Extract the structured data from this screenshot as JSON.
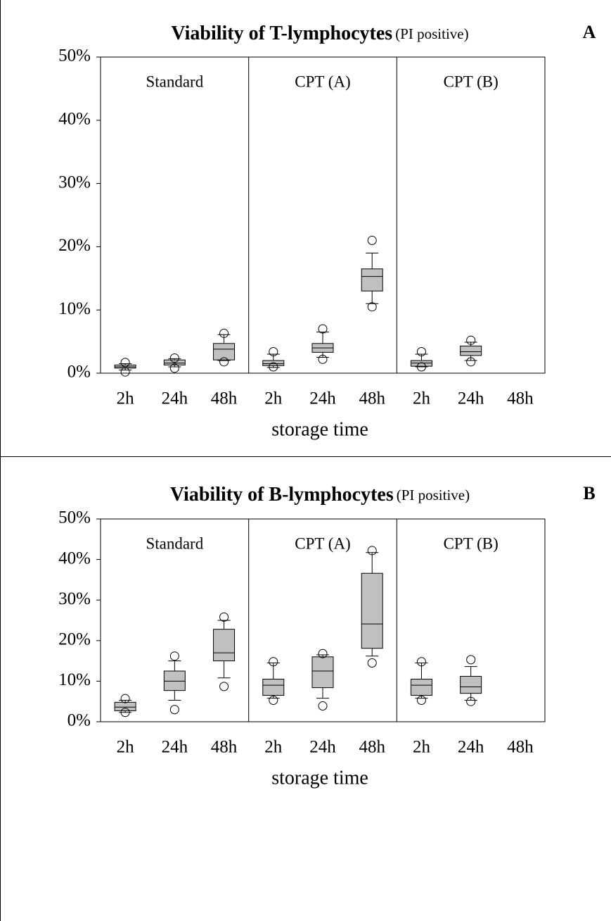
{
  "chart_data": [
    {
      "type": "box",
      "title": "Viability of T-lymphocytes",
      "subtitle": "(PI positive)",
      "panel_label": "A",
      "xlabel": "storage time",
      "groups": [
        "Standard",
        "CPT (A)",
        "CPT (B)"
      ],
      "categories": [
        "2h",
        "24h",
        "48h",
        "2h",
        "24h",
        "48h",
        "2h",
        "24h",
        "48h"
      ],
      "color": "#c0c0c0",
      "ylim": [
        0,
        50
      ],
      "yticks": [
        {
          "value": 0,
          "label": "0%"
        },
        {
          "value": 10,
          "label": "10%"
        },
        {
          "value": 20,
          "label": "20%"
        },
        {
          "value": 30,
          "label": "30%"
        },
        {
          "value": 40,
          "label": "40%"
        },
        {
          "value": 50,
          "label": "50%"
        }
      ],
      "boxes": [
        {
          "min": 0.5,
          "q1": 0.8,
          "median": 1.0,
          "q3": 1.3,
          "max": 1.5,
          "outliers": [
            1.7,
            0.2
          ]
        },
        {
          "min": 1.0,
          "q1": 1.3,
          "median": 1.6,
          "q3": 2.1,
          "max": 2.3,
          "outliers": [
            2.4,
            0.8
          ]
        },
        {
          "min": 2.0,
          "q1": 2.1,
          "median": 3.8,
          "q3": 4.7,
          "max": 6.1,
          "outliers": [
            6.3,
            1.8
          ]
        },
        {
          "min": 0.9,
          "q1": 1.2,
          "median": 1.5,
          "q3": 2.0,
          "max": 3.0,
          "outliers": [
            3.4,
            1.0
          ]
        },
        {
          "min": 2.5,
          "q1": 3.3,
          "median": 4.0,
          "q3": 4.7,
          "max": 6.5,
          "outliers": [
            7.0,
            2.2
          ]
        },
        {
          "min": 11,
          "q1": 13,
          "median": 15.3,
          "q3": 16.5,
          "max": 19,
          "outliers": [
            21,
            10.5
          ]
        },
        {
          "min": 1.0,
          "q1": 1.1,
          "median": 1.6,
          "q3": 2.0,
          "max": 3.0,
          "outliers": [
            3.4,
            1.0
          ]
        },
        {
          "min": 2.0,
          "q1": 2.8,
          "median": 3.4,
          "q3": 4.3,
          "max": 4.9,
          "outliers": [
            5.2,
            1.8
          ]
        },
        null
      ]
    },
    {
      "type": "box",
      "title": "Viability of B-lymphocytes",
      "subtitle": "(PI positive)",
      "panel_label": "B",
      "xlabel": "storage time",
      "groups": [
        "Standard",
        "CPT (A)",
        "CPT (B)"
      ],
      "categories": [
        "2h",
        "24h",
        "48h",
        "2h",
        "24h",
        "48h",
        "2h",
        "24h",
        "48h"
      ],
      "color": "#c0c0c0",
      "ylim": [
        0,
        50
      ],
      "yticks": [
        {
          "value": 0,
          "label": "0%"
        },
        {
          "value": 10,
          "label": "10%"
        },
        {
          "value": 20,
          "label": "20%"
        },
        {
          "value": 30,
          "label": "30%"
        },
        {
          "value": 40,
          "label": "40%"
        },
        {
          "value": 50,
          "label": "50%"
        }
      ],
      "boxes": [
        {
          "min": 2.3,
          "q1": 2.7,
          "median": 3.6,
          "q3": 4.8,
          "max": 5.3,
          "outliers": [
            5.7,
            2.3
          ]
        },
        {
          "min": 5.3,
          "q1": 7.7,
          "median": 10,
          "q3": 12.5,
          "max": 15,
          "outliers": [
            16.2,
            3.0
          ]
        },
        {
          "min": 10.8,
          "q1": 15,
          "median": 17,
          "q3": 22.8,
          "max": 25,
          "outliers": [
            25.8,
            8.7
          ]
        },
        {
          "min": 5.8,
          "q1": 6.5,
          "median": 9,
          "q3": 10.5,
          "max": 14.5,
          "outliers": [
            14.8,
            5.3
          ]
        },
        {
          "min": 5.8,
          "q1": 8.4,
          "median": 12.5,
          "q3": 16,
          "max": 16.5,
          "outliers": [
            16.8,
            3.9
          ]
        },
        {
          "min": 16.2,
          "q1": 18.1,
          "median": 24.1,
          "q3": 36.6,
          "max": 41.7,
          "outliers": [
            42.2,
            14.5
          ]
        },
        {
          "min": 5.8,
          "q1": 6.5,
          "median": 9,
          "q3": 10.5,
          "max": 14.5,
          "outliers": [
            14.8,
            5.3
          ]
        },
        {
          "min": 5.3,
          "q1": 7,
          "median": 8.6,
          "q3": 11.2,
          "max": 13.6,
          "outliers": [
            15.3,
            5.0
          ]
        },
        null
      ]
    }
  ]
}
